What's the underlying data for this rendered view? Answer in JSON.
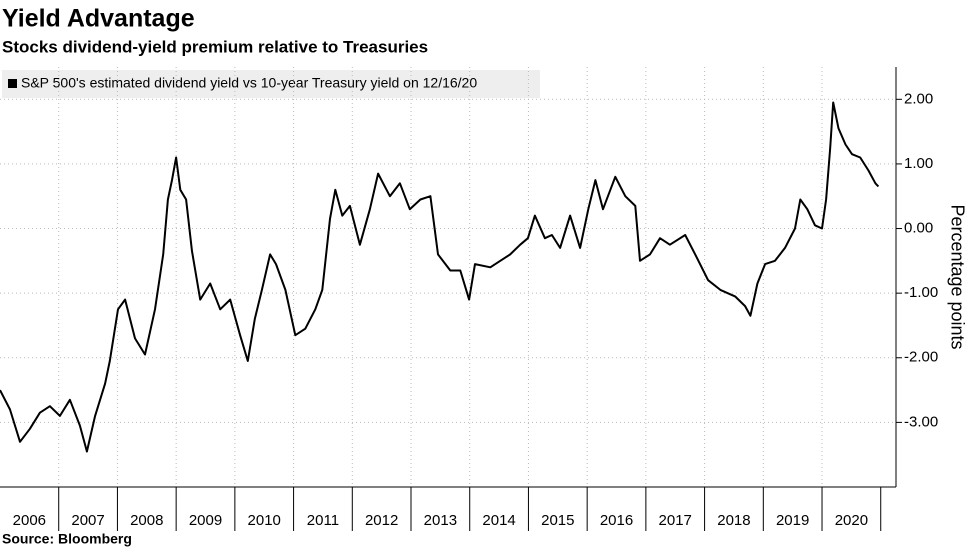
{
  "chart_data": {
    "type": "line",
    "title": "Yield Advantage",
    "subtitle": "Stocks dividend-yield premium relative to Treasuries",
    "y_axis_label": "Percentage points",
    "source": "Source: Bloomberg",
    "x": [
      2006.0,
      2006.17,
      2006.34,
      2006.51,
      2006.68,
      2006.85,
      2007.02,
      2007.19,
      2007.36,
      2007.48,
      2007.62,
      2007.79,
      2007.87,
      2008.01,
      2008.13,
      2008.3,
      2008.47,
      2008.64,
      2008.78,
      2008.86,
      2008.93,
      2009.0,
      2009.07,
      2009.17,
      2009.27,
      2009.41,
      2009.58,
      2009.75,
      2009.92,
      2010.09,
      2010.22,
      2010.34,
      2010.46,
      2010.6,
      2010.7,
      2010.86,
      2011.03,
      2011.2,
      2011.37,
      2011.49,
      2011.62,
      2011.71,
      2011.83,
      2011.96,
      2012.13,
      2012.3,
      2012.44,
      2012.64,
      2012.81,
      2012.98,
      2013.16,
      2013.33,
      2013.46,
      2013.67,
      2013.84,
      2013.99,
      2014.09,
      2014.35,
      2014.52,
      2014.69,
      2014.86,
      2014.99,
      2015.11,
      2015.28,
      2015.4,
      2015.54,
      2015.71,
      2015.88,
      2016.02,
      2016.14,
      2016.27,
      2016.48,
      2016.65,
      2016.82,
      2016.9,
      2017.07,
      2017.24,
      2017.41,
      2017.67,
      2017.84,
      2018.06,
      2018.27,
      2018.52,
      2018.69,
      2018.78,
      2018.9,
      2019.03,
      2019.2,
      2019.37,
      2019.54,
      2019.63,
      2019.75,
      2019.88,
      2020.0,
      2020.07,
      2020.14,
      2020.19,
      2020.28,
      2020.4,
      2020.51,
      2020.65,
      2020.79,
      2020.91,
      2020.96
    ],
    "series": [
      {
        "name": "S&P 500's estimated dividend yield vs 10-year Treasury yield on 12/16/20",
        "color": "#000000",
        "values": [
          -2.5,
          -2.8,
          -3.3,
          -3.1,
          -2.85,
          -2.75,
          -2.9,
          -2.65,
          -3.05,
          -3.45,
          -2.9,
          -2.4,
          -2.05,
          -1.25,
          -1.1,
          -1.7,
          -1.95,
          -1.25,
          -0.4,
          0.45,
          0.75,
          1.1,
          0.6,
          0.45,
          -0.35,
          -1.1,
          -0.85,
          -1.25,
          -1.1,
          -1.65,
          -2.05,
          -1.4,
          -0.95,
          -0.4,
          -0.55,
          -0.95,
          -1.65,
          -1.55,
          -1.25,
          -0.95,
          0.15,
          0.6,
          0.2,
          0.35,
          -0.25,
          0.3,
          0.85,
          0.5,
          0.7,
          0.3,
          0.45,
          0.5,
          -0.4,
          -0.65,
          -0.65,
          -1.1,
          -0.55,
          -0.6,
          -0.5,
          -0.4,
          -0.25,
          -0.15,
          0.2,
          -0.15,
          -0.1,
          -0.3,
          0.2,
          -0.3,
          0.3,
          0.75,
          0.3,
          0.8,
          0.5,
          0.35,
          -0.5,
          -0.4,
          -0.15,
          -0.25,
          -0.1,
          -0.4,
          -0.8,
          -0.95,
          -1.05,
          -1.2,
          -1.35,
          -0.85,
          -0.55,
          -0.5,
          -0.3,
          0,
          0.45,
          0.3,
          0.05,
          0,
          0.45,
          1.25,
          1.95,
          1.55,
          1.3,
          1.15,
          1.1,
          0.9,
          0.7,
          0.65
        ]
      }
    ],
    "xlim": [
      2006,
      2021.26
    ],
    "xticks": [
      2006,
      2007,
      2008,
      2009,
      2010,
      2011,
      2012,
      2013,
      2014,
      2015,
      2016,
      2017,
      2018,
      2019,
      2020
    ],
    "ylim": [
      -4,
      2.5
    ],
    "yticks": [
      {
        "value": -3,
        "label": "-3.00"
      },
      {
        "value": -2,
        "label": "-2.00"
      },
      {
        "value": -1,
        "label": "-1.00"
      },
      {
        "value": 0,
        "label": "0.00"
      },
      {
        "value": 1,
        "label": "1.00"
      },
      {
        "value": 2,
        "label": "2.00"
      }
    ],
    "grid": true
  }
}
